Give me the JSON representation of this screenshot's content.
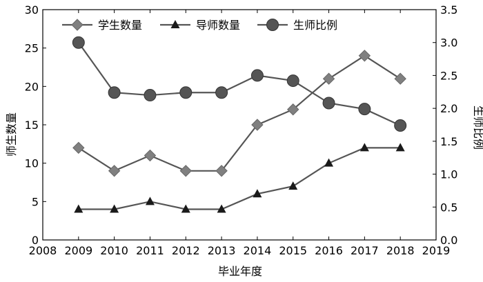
{
  "chart_data": {
    "type": "line",
    "x": [
      2009,
      2010,
      2011,
      2012,
      2013,
      2014,
      2015,
      2016,
      2017,
      2018
    ],
    "xlabel": "毕业年度",
    "ylabel": "师生数量",
    "y2label": "生师比例",
    "xlim": [
      2008,
      2019
    ],
    "ylim": [
      0,
      30
    ],
    "y2lim": [
      0,
      3.5
    ],
    "xticks": [
      "2008",
      "2009",
      "2010",
      "2011",
      "2012",
      "2013",
      "2014",
      "2015",
      "2016",
      "2017",
      "2018",
      "2019"
    ],
    "yticks": [
      "0",
      "5",
      "10",
      "15",
      "20",
      "25",
      "30"
    ],
    "y2ticks": [
      "0.0",
      "0.5",
      "1.0",
      "1.5",
      "2.0",
      "2.5",
      "3.0",
      "3.5"
    ],
    "grid": false,
    "legend_position": "top-left",
    "series": [
      {
        "name": "学生数量",
        "axis": "left",
        "marker": "diamond",
        "color": "#808080",
        "values": [
          12,
          9,
          11,
          9,
          9,
          15,
          17,
          21,
          24,
          21
        ]
      },
      {
        "name": "导师数量",
        "axis": "left",
        "marker": "triangle",
        "color": "#1a1a1a",
        "values": [
          4,
          4,
          5,
          4,
          4,
          6,
          7,
          10,
          12,
          12
        ]
      },
      {
        "name": "生师比例",
        "axis": "right",
        "marker": "circle",
        "color": "#555555",
        "values": [
          3.0,
          2.24,
          2.2,
          2.24,
          2.24,
          2.5,
          2.42,
          2.08,
          1.99,
          1.74
        ]
      }
    ]
  }
}
